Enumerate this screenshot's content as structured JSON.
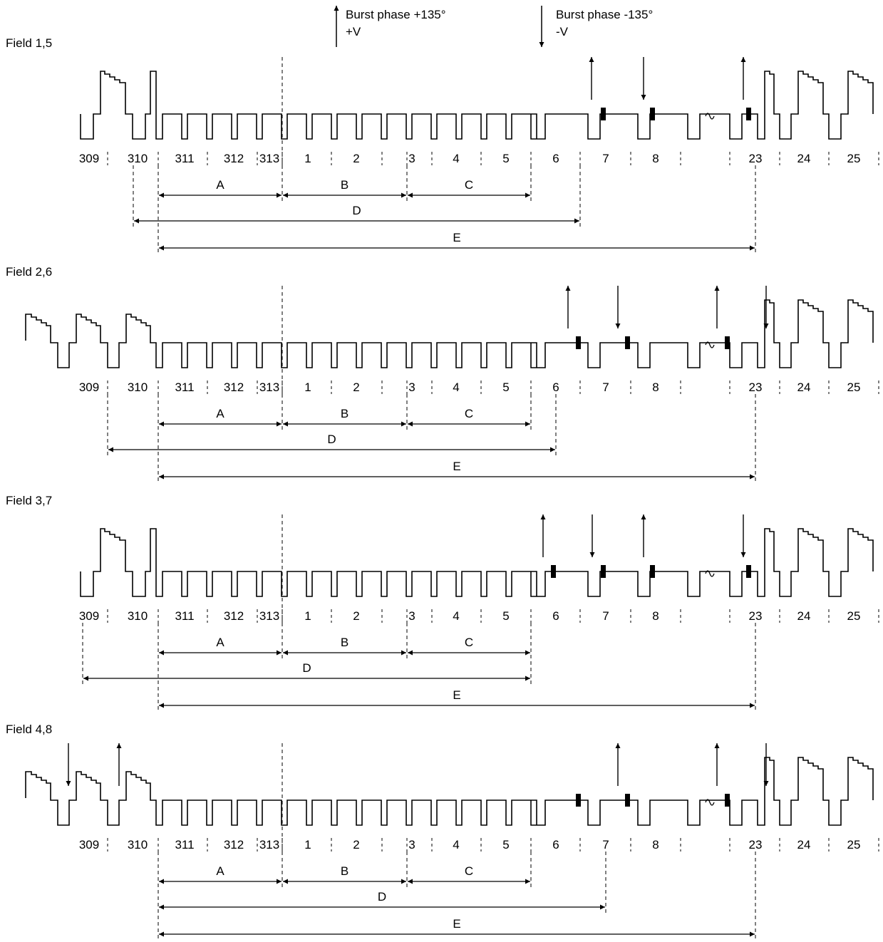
{
  "legend": {
    "up_line1": "Burst phase +135°",
    "up_line2": "+V",
    "down_line1": "Burst phase -135°",
    "down_line2": "-V"
  },
  "line_numbers": [
    "309",
    "310",
    "311",
    "312",
    "313",
    "1",
    "2",
    "3",
    "4",
    "5",
    "6",
    "7",
    "8",
    "23",
    "24",
    "25"
  ],
  "interval_labels": [
    "A",
    "B",
    "C",
    "D",
    "E"
  ],
  "fields": [
    {
      "label": "Field 1,5"
    },
    {
      "label": "Field 2,6"
    },
    {
      "label": "Field 3,7"
    },
    {
      "label": "Field 4,8"
    }
  ]
}
